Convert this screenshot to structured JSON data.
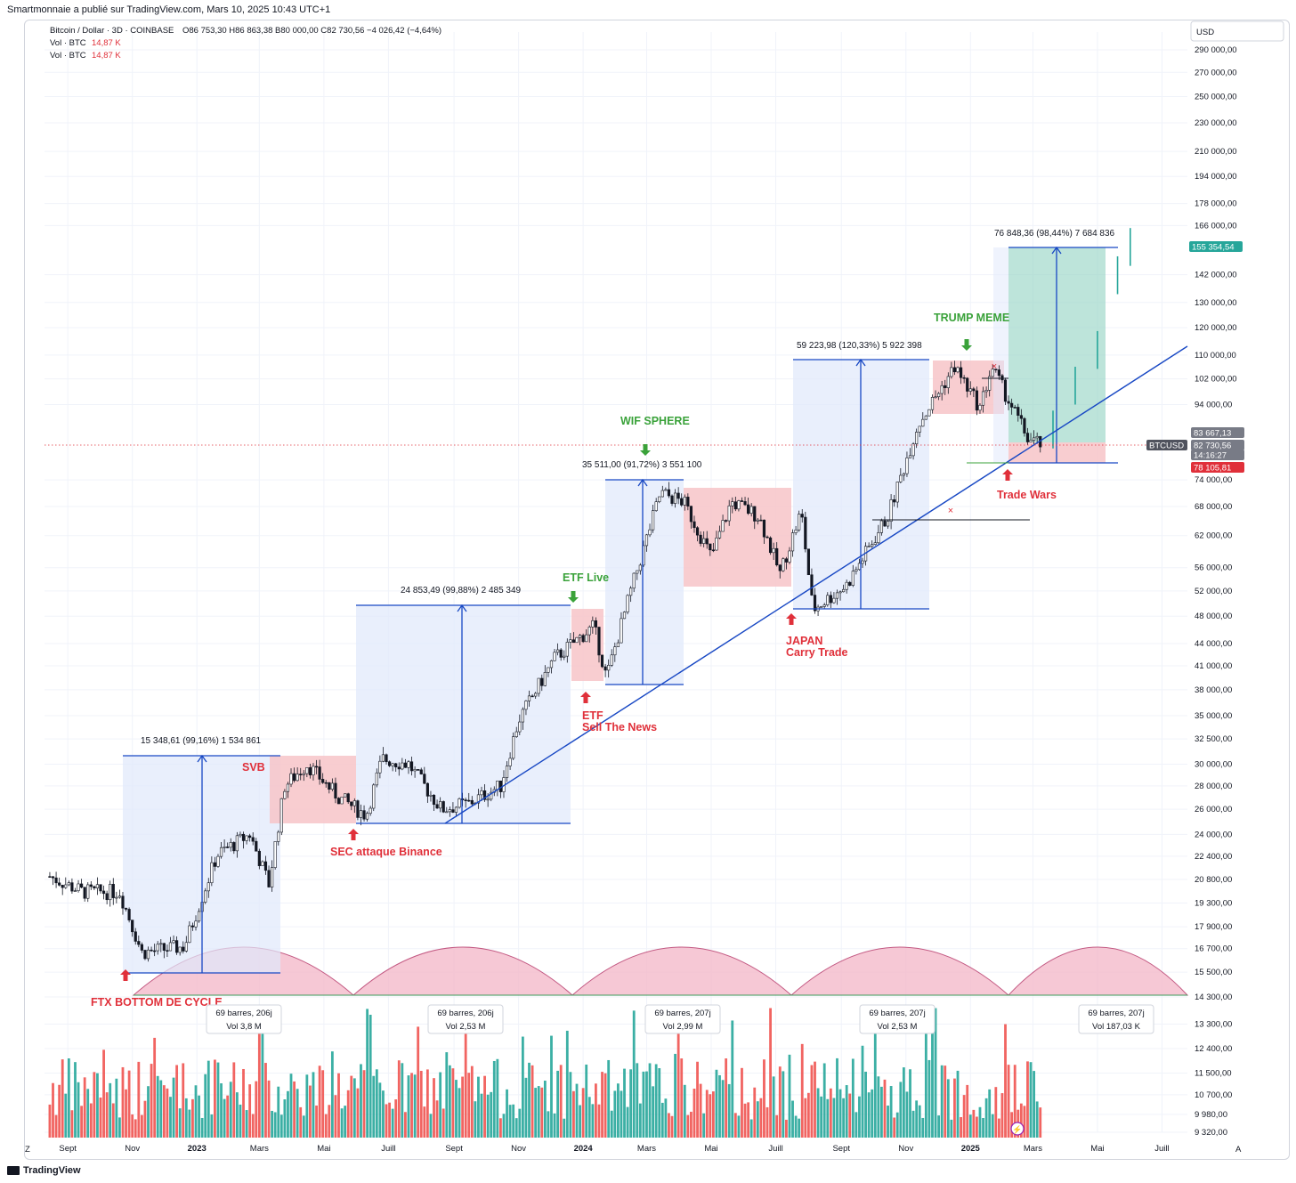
{
  "credit": "Smartmonnaie a publié sur TradingView.com, Mars 10, 2025 10:43 UTC+1",
  "brand": "TradingView",
  "legend": {
    "symbol_line": "Bitcoin / Dollar · 3D · COINBASE",
    "ohlc": "O86 753,30  H86 863,38  B80 000,00  C82 730,56  −4 026,42 (−4,64%)",
    "vol1_label": "Vol · BTC",
    "vol1_value": "14,87 K",
    "vol2_label": "Vol · BTC",
    "vol2_value": "14,87 K"
  },
  "currency": "USD",
  "colors": {
    "up": "#26a69a",
    "down": "#ef5350",
    "trend": "#1848c4",
    "red_zone": "#f7c4c8",
    "blue_zone": "#dfe8fb",
    "green_zone": "#9ad6c6",
    "arc": "#f4b6c8",
    "annotation_red": "#e0303a",
    "annotation_green": "#3aa23a"
  },
  "tags": {
    "target": "155 354,54",
    "symbol": "BTCUSD",
    "price1": "83 667,13",
    "price2": "82 730,56",
    "countdown": "14:16:27",
    "low": "78 105,81"
  },
  "annotations": [
    {
      "id": "ftx",
      "text": "FTX BOTTOM DE CYCLE",
      "color": "red"
    },
    {
      "id": "svb",
      "text": "SVB",
      "color": "red"
    },
    {
      "id": "sec",
      "text": "SEC attaque Binance",
      "color": "red"
    },
    {
      "id": "etf_live",
      "text": "ETF Live",
      "color": "green"
    },
    {
      "id": "etf_sell1",
      "text": "ETF",
      "color": "red"
    },
    {
      "id": "etf_sell2",
      "text": "Sell The News",
      "color": "red"
    },
    {
      "id": "wif",
      "text": "WIF SPHERE",
      "color": "green"
    },
    {
      "id": "japan1",
      "text": "JAPAN",
      "color": "red"
    },
    {
      "id": "japan2",
      "text": "Carry Trade",
      "color": "red"
    },
    {
      "id": "trump",
      "text": "TRUMP MEME",
      "color": "green"
    },
    {
      "id": "trade",
      "text": "Trade Wars",
      "color": "red"
    }
  ],
  "measures": [
    "15 348,61 (99,16%) 1 534 861",
    "24 853,49 (99,88%) 2 485 349",
    "35 511,00 (91,72%) 3 551 100",
    "59 223,98 (120,33%) 5 922 398",
    "76 848,36 (98,44%) 7 684 836"
  ],
  "cycles": [
    {
      "bars": "69 barres, 206j",
      "vol": "Vol 3,8 M"
    },
    {
      "bars": "69 barres, 206j",
      "vol": "Vol 2,53 M"
    },
    {
      "bars": "69 barres, 207j",
      "vol": "Vol 2,99 M"
    },
    {
      "bars": "69 barres, 207j",
      "vol": "Vol 2,53 M"
    },
    {
      "bars": "69 barres, 207j",
      "vol": "Vol 187,03 K"
    }
  ],
  "x_axis_labels": [
    "Sept",
    "Nov",
    "2023",
    "Mars",
    "Mai",
    "Juill",
    "Sept",
    "Nov",
    "2024",
    "Mars",
    "Mai",
    "Juill",
    "Sept",
    "Nov",
    "2025",
    "Mars",
    "Mai",
    "Juill"
  ],
  "y_axis_labels": [
    "290 000,00",
    "270 000,00",
    "250 000,00",
    "230 000,00",
    "210 000,00",
    "194 000,00",
    "178 000,00",
    "166 000,00",
    "142 000,00",
    "130 000,00",
    "120 000,00",
    "110 000,00",
    "102 000,00",
    "94 000,00",
    "74 000,00",
    "68 000,00",
    "62 000,00",
    "56 000,00",
    "52 000,00",
    "48 000,00",
    "44 000,00",
    "41 000,00",
    "38 000,00",
    "35 000,00",
    "32 500,00",
    "30 000,00",
    "28 000,00",
    "26 000,00",
    "24 000,00",
    "22 400,00",
    "20 800,00",
    "19 300,00",
    "17 900,00",
    "16 700,00",
    "15 500,00",
    "14 300,00",
    "13 300,00",
    "12 400,00",
    "11 500,00",
    "10 700,00",
    "9 980,00",
    "9 320,00"
  ],
  "chart_data": {
    "type": "candlestick",
    "title": "Bitcoin / Dollar · 3D · COINBASE",
    "y_scale": "log",
    "ylim": [
      9320,
      290000
    ],
    "x": [
      "2022-09",
      "2022-11",
      "2023-01",
      "2023-03",
      "2023-05",
      "2023-07",
      "2023-09",
      "2023-11",
      "2024-01",
      "2024-03",
      "2024-05",
      "2024-07",
      "2024-09",
      "2024-11",
      "2025-01",
      "2025-03",
      "2025-05",
      "2025-07"
    ],
    "close_path": [
      [
        "2022-08-15",
        21000
      ],
      [
        "2022-09-15",
        20000
      ],
      [
        "2022-10-20",
        20000
      ],
      [
        "2022-11-10",
        16500
      ],
      [
        "2022-12-20",
        16800
      ],
      [
        "2023-01-20",
        22500
      ],
      [
        "2023-02-20",
        24000
      ],
      [
        "2023-03-10",
        20500
      ],
      [
        "2023-03-25",
        28000
      ],
      [
        "2023-04-15",
        30000
      ],
      [
        "2023-05-15",
        27000
      ],
      [
        "2023-06-10",
        25500
      ],
      [
        "2023-06-25",
        30500
      ],
      [
        "2023-07-20",
        30000
      ],
      [
        "2023-08-20",
        26000
      ],
      [
        "2023-09-15",
        26500
      ],
      [
        "2023-10-15",
        28000
      ],
      [
        "2023-11-01",
        34500
      ],
      [
        "2023-12-05",
        42000
      ],
      [
        "2024-01-11",
        46500
      ],
      [
        "2024-01-23",
        39500
      ],
      [
        "2024-02-15",
        52000
      ],
      [
        "2024-03-14",
        71000
      ],
      [
        "2024-04-05",
        69000
      ],
      [
        "2024-05-01",
        58000
      ],
      [
        "2024-05-20",
        69000
      ],
      [
        "2024-06-15",
        66000
      ],
      [
        "2024-07-05",
        55000
      ],
      [
        "2024-07-25",
        67000
      ],
      [
        "2024-08-05",
        49000
      ],
      [
        "2024-09-06",
        53000
      ],
      [
        "2024-10-15",
        66000
      ],
      [
        "2024-11-12",
        88000
      ],
      [
        "2024-12-17",
        106000
      ],
      [
        "2025-01-10",
        93000
      ],
      [
        "2025-01-21",
        106000
      ],
      [
        "2025-02-25",
        84000
      ],
      [
        "2025-03-10",
        82730.56
      ]
    ],
    "projection": [
      [
        "2025-03-20",
        87000
      ],
      [
        "2025-04-10",
        100000
      ],
      [
        "2025-05-01",
        112000
      ],
      [
        "2025-05-20",
        142000
      ],
      [
        "2025-06-01",
        155354.54
      ]
    ],
    "current_price": 82730.56,
    "trendline": [
      [
        "2023-08-20",
        25500
      ],
      [
        "2025-07-10",
        110000
      ]
    ],
    "volume_colors": "up/down by candle direction"
  }
}
